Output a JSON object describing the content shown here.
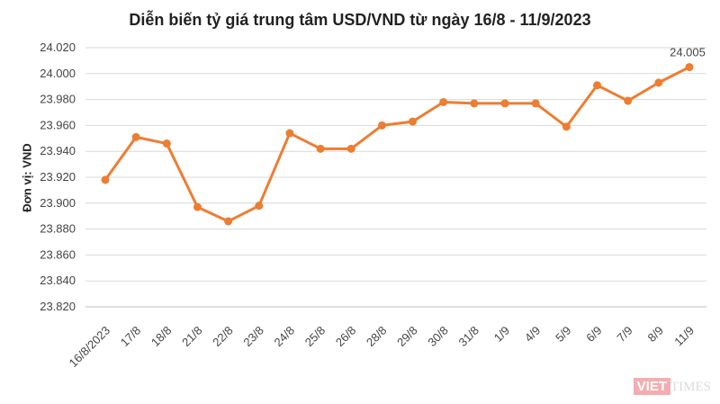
{
  "chart_data": {
    "type": "line",
    "title": "Diễn biến tỷ giá trung tâm USD/VND từ ngày 16/8 - 11/9/2023",
    "ylabel": "Đơn vị: VND",
    "xlabel": "",
    "categories": [
      "16/8/2023",
      "17/8",
      "18/8",
      "21/8",
      "22/8",
      "23/8",
      "24/8",
      "25/8",
      "26/8",
      "28/8",
      "29/8",
      "30/8",
      "31/8",
      "1/9",
      "4/9",
      "5/9",
      "6/9",
      "7/9",
      "8/9",
      "11/9"
    ],
    "values": [
      23918,
      23951,
      23946,
      23897,
      23886,
      23898,
      23954,
      23942,
      23942,
      23960,
      23963,
      23978,
      23977,
      23977,
      23977,
      23959,
      23991,
      23979,
      23993,
      24005
    ],
    "ylim": [
      23820,
      24020
    ],
    "yticks": [
      "23.820",
      "23.840",
      "23.860",
      "23.880",
      "23.900",
      "23.920",
      "23.940",
      "23.960",
      "23.980",
      "24.000",
      "24.020"
    ],
    "annotation": "24.005",
    "grid": true,
    "line_color": "#ed7d31"
  },
  "logo": {
    "part1": "VIET",
    "part2": "TIMES"
  }
}
